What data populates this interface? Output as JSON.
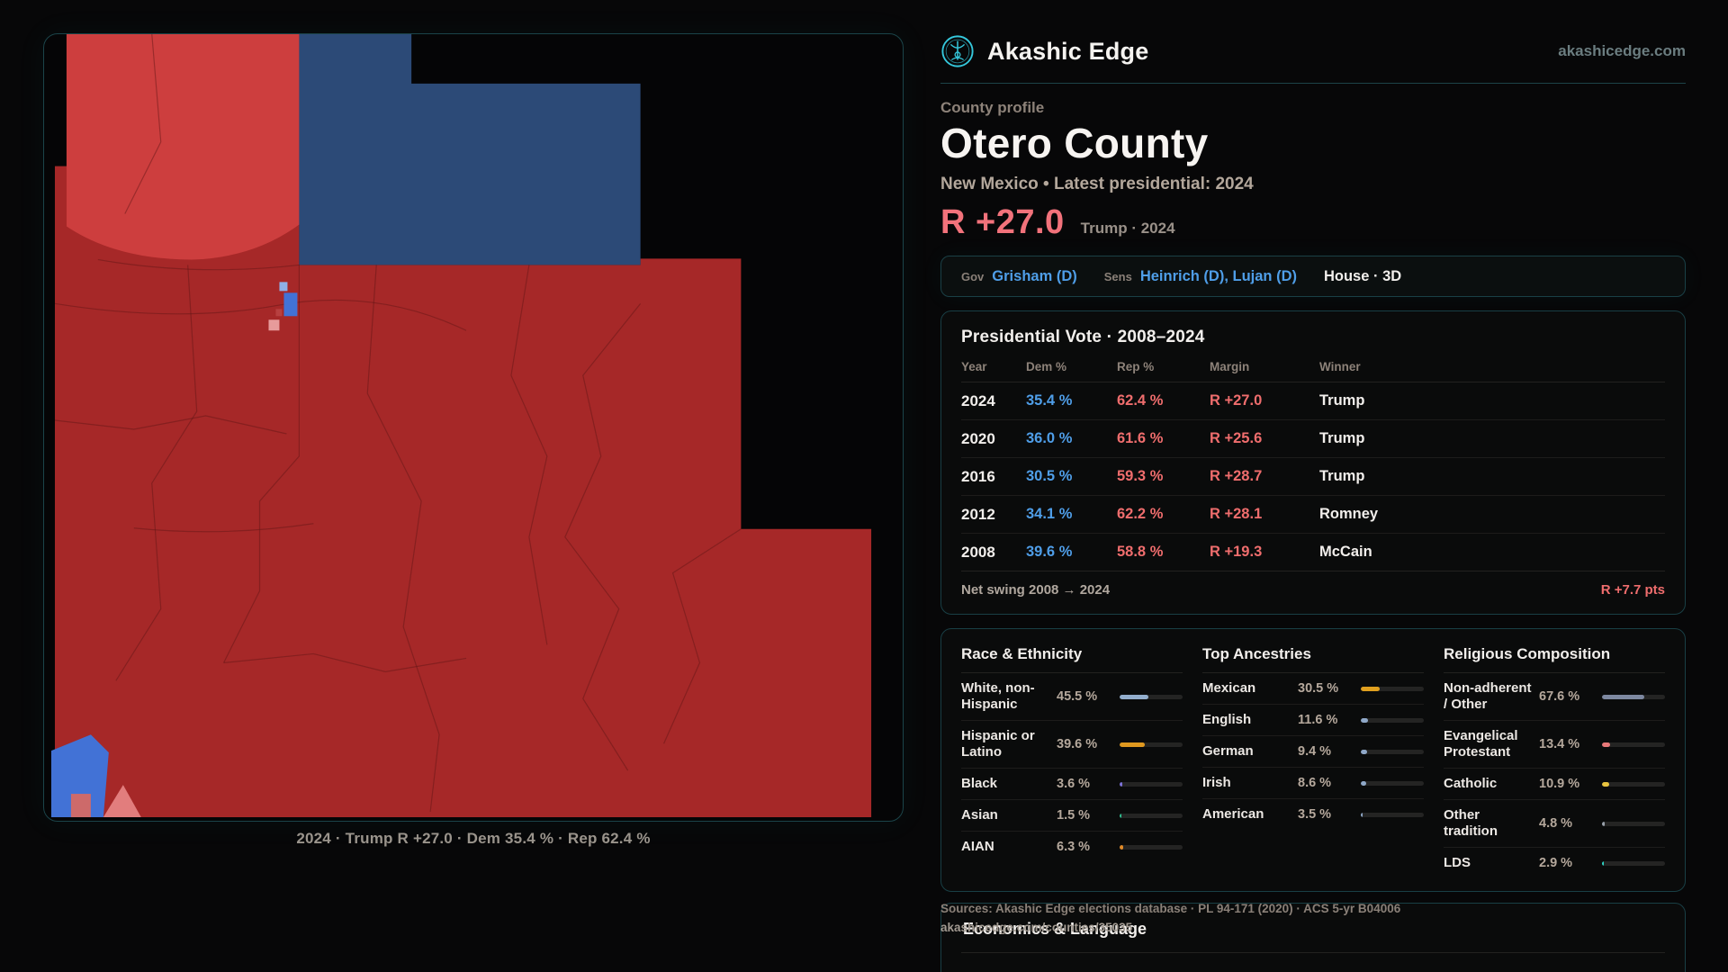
{
  "brand": {
    "name": "Akashic Edge",
    "domain": "akashicedge.com"
  },
  "profile": {
    "eyebrow": "County profile",
    "title": "Otero County",
    "subtitle": "New Mexico • Latest presidential: 2024",
    "margin_big": "R +27.0",
    "margin_note": "Trump · 2024"
  },
  "officials": {
    "gov_label": "Gov",
    "gov_value": "Grisham (D)",
    "sens_label": "Sens",
    "sens_value": "Heinrich (D), Lujan (D)",
    "house_value": "House · 3D"
  },
  "presidential": {
    "title": "Presidential Vote · 2008–2024",
    "columns": [
      "Year",
      "Dem %",
      "Rep %",
      "Margin",
      "Winner"
    ],
    "rows": [
      {
        "year": "2024",
        "dem": "35.4 %",
        "rep": "62.4 %",
        "margin": "R +27.0",
        "winner": "Trump"
      },
      {
        "year": "2020",
        "dem": "36.0 %",
        "rep": "61.6 %",
        "margin": "R +25.6",
        "winner": "Trump"
      },
      {
        "year": "2016",
        "dem": "30.5 %",
        "rep": "59.3 %",
        "margin": "R +28.7",
        "winner": "Trump"
      },
      {
        "year": "2012",
        "dem": "34.1 %",
        "rep": "62.2 %",
        "margin": "R +28.1",
        "winner": "Romney"
      },
      {
        "year": "2008",
        "dem": "39.6 %",
        "rep": "58.8 %",
        "margin": "R +19.3",
        "winner": "McCain"
      }
    ],
    "net_swing_label": "Net swing 2008 → 2024",
    "net_swing_value": "R +7.7 pts"
  },
  "demographics": {
    "groups": [
      {
        "title": "Race & Ethnicity",
        "rows": [
          {
            "label": "White, non-Hispanic",
            "value": "45.5 %",
            "pct": 45.5,
            "color": "#93aecd"
          },
          {
            "label": "Hispanic or Latino",
            "value": "39.6 %",
            "pct": 39.6,
            "color": "#e0991f"
          },
          {
            "label": "Black",
            "value": "3.6 %",
            "pct": 3.6,
            "color": "#7d72d8"
          },
          {
            "label": "Asian",
            "value": "1.5 %",
            "pct": 1.5,
            "color": "#2fbf8f"
          },
          {
            "label": "AIAN",
            "value": "6.3 %",
            "pct": 6.3,
            "color": "#e08a28"
          }
        ]
      },
      {
        "title": "Top Ancestries",
        "rows": [
          {
            "label": "Mexican",
            "value": "30.5 %",
            "pct": 30.5,
            "color": "#e0a01f"
          },
          {
            "label": "English",
            "value": "11.6 %",
            "pct": 11.6,
            "color": "#8fa8c8"
          },
          {
            "label": "German",
            "value": "9.4 %",
            "pct": 9.4,
            "color": "#8fa8c8"
          },
          {
            "label": "Irish",
            "value": "8.6 %",
            "pct": 8.6,
            "color": "#8fa8c8"
          },
          {
            "label": "American",
            "value": "3.5 %",
            "pct": 3.5,
            "color": "#8fa8c8"
          }
        ]
      },
      {
        "title": "Religious Composition",
        "rows": [
          {
            "label": "Non-adherent / Other",
            "value": "67.6 %",
            "pct": 67.6,
            "color": "#7d88a0"
          },
          {
            "label": "Evangelical Protestant",
            "value": "13.4 %",
            "pct": 13.4,
            "color": "#e87878"
          },
          {
            "label": "Catholic",
            "value": "10.9 %",
            "pct": 10.9,
            "color": "#e8c33f"
          },
          {
            "label": "Other tradition",
            "value": "4.8 %",
            "pct": 4.8,
            "color": "#98a0aa"
          },
          {
            "label": "LDS",
            "value": "2.9 %",
            "pct": 2.9,
            "color": "#2fd4c4"
          }
        ]
      }
    ]
  },
  "sources": {
    "line1": "Sources: Akashic Edge elections database · PL 94-171 (2020) · ACS 5-yr B04006",
    "line2": "akashicedge.com/counties/35035"
  },
  "economics": {
    "title": "Economics & Language"
  },
  "map": {
    "caption": "2024 · Trump R +27.0 · Dem 35.4 % · Rep 62.4 %"
  },
  "colors": {
    "accent_teal": "#2fc4d8",
    "dem_blue": "#4f9ee8",
    "rep_red": "#ef6d6d",
    "margin_red": "#f2727b",
    "map_dark_red": "#a62828",
    "map_light_red": "#cd3e3e",
    "map_navy": "#2c4a77",
    "map_blue": "#4272d6"
  }
}
